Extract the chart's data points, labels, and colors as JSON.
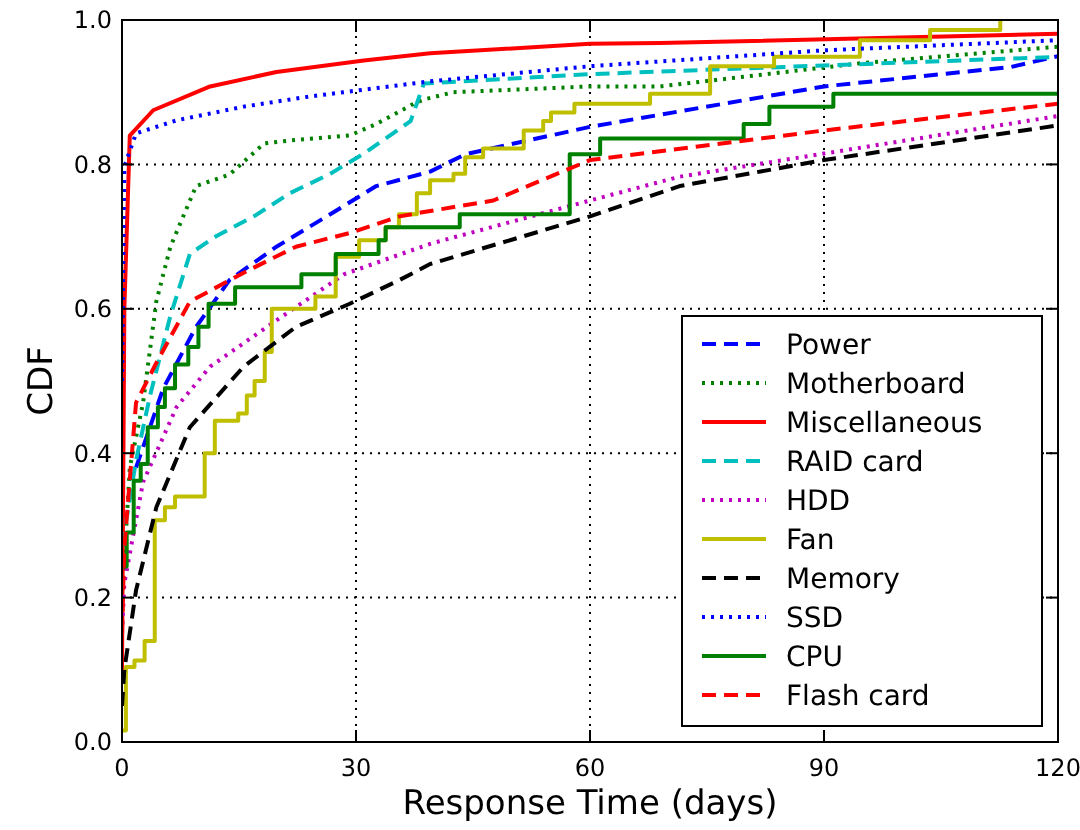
{
  "chart_data": {
    "type": "line",
    "xlabel": "Response Time (days)",
    "ylabel": "CDF",
    "xlim": [
      0,
      120
    ],
    "ylim": [
      0,
      1
    ],
    "xticks": [
      0,
      30,
      60,
      90,
      120
    ],
    "yticks": [
      {
        "value": 0,
        "label": "0.0"
      },
      {
        "value": 0.2,
        "label": "0.2"
      },
      {
        "value": 0.4,
        "label": "0.4"
      },
      {
        "value": 0.6,
        "label": "0.6"
      },
      {
        "value": 0.8,
        "label": "0.8"
      },
      {
        "value": 1,
        "label": "1.0"
      }
    ],
    "grid": true,
    "legend": "bottom right",
    "marker": "none",
    "series": [
      {
        "name": "Power",
        "color": "#0000ff",
        "line_style": "dashed",
        "x": [
          1.8,
          5.3,
          9.5,
          13.8,
          19.8,
          26.7,
          32.6,
          39.5,
          44,
          60,
          90,
          114,
          120
        ],
        "values": [
          0.38,
          0.49,
          0.575,
          0.64,
          0.686,
          0.731,
          0.77,
          0.79,
          0.814,
          0.852,
          0.908,
          0.935,
          0.95
        ]
      },
      {
        "name": "Motherboard",
        "color": "#008000",
        "line_style": "dotted",
        "x": [
          0,
          1,
          2.7,
          4.4,
          6.2,
          9.5,
          13.8,
          18.2,
          22.3,
          29.2,
          32.6,
          37.4,
          38.7,
          42.5,
          60,
          69,
          94.6,
          120
        ],
        "values": [
          0.2,
          0.38,
          0.47,
          0.61,
          0.686,
          0.77,
          0.786,
          0.829,
          0.834,
          0.84,
          0.856,
          0.884,
          0.89,
          0.9,
          0.908,
          0.908,
          0.94,
          0.963
        ]
      },
      {
        "name": "Miscellaneous",
        "color": "#ff0000",
        "line_style": "solid",
        "x": [
          0,
          0.3,
          1,
          4,
          11.3,
          19.8,
          31,
          39.5,
          60,
          69,
          120
        ],
        "values": [
          0.1,
          0.6,
          0.84,
          0.875,
          0.908,
          0.928,
          0.944,
          0.954,
          0.967,
          0.968,
          0.981
        ]
      },
      {
        "name": "RAID card",
        "color": "#00bfbf",
        "line_style": "dashed",
        "x": [
          0,
          0.3,
          1.8,
          3.6,
          6.2,
          8.7,
          12,
          17.2,
          21.5,
          26.7,
          31,
          37,
          38.7,
          60,
          90,
          120
        ],
        "values": [
          0.18,
          0.29,
          0.39,
          0.48,
          0.59,
          0.676,
          0.7,
          0.73,
          0.76,
          0.787,
          0.815,
          0.86,
          0.912,
          0.925,
          0.937,
          0.949
        ]
      },
      {
        "name": "HDD",
        "color": "#bf00bf",
        "line_style": "dotted",
        "x": [
          0,
          0.3,
          2.7,
          7,
          11.3,
          19.8,
          28.5,
          39.5,
          60,
          71.5,
          90,
          120
        ],
        "values": [
          0.15,
          0.22,
          0.36,
          0.464,
          0.52,
          0.584,
          0.648,
          0.69,
          0.75,
          0.783,
          0.815,
          0.867
        ]
      },
      {
        "name": "Fan",
        "color": "#bfbf00",
        "line_style": "solid",
        "type": "step",
        "x": [
          0,
          0.5,
          1.6,
          2.9,
          4.2,
          5.5,
          6.8,
          10.6,
          11.9,
          14.9,
          16,
          17,
          18.3,
          19.2,
          24.8,
          27.4,
          30.4,
          33.8,
          35.5,
          37.8,
          39.5,
          42.5,
          44,
          46.3,
          51.5,
          54,
          55,
          58,
          67.7,
          75.4,
          83.6,
          94.6,
          103.6,
          112.6
        ],
        "values": [
          0.016,
          0.104,
          0.113,
          0.14,
          0.307,
          0.325,
          0.34,
          0.4,
          0.445,
          0.455,
          0.48,
          0.5,
          0.54,
          0.6,
          0.617,
          0.672,
          0.695,
          0.713,
          0.731,
          0.76,
          0.778,
          0.787,
          0.81,
          0.822,
          0.847,
          0.86,
          0.872,
          0.884,
          0.898,
          0.936,
          0.949,
          0.972,
          0.986,
          1
        ]
      },
      {
        "name": "Memory",
        "color": "#000000",
        "line_style": "dashed",
        "x": [
          0,
          0.3,
          1.8,
          4.4,
          8.7,
          15.6,
          22.3,
          29.2,
          35.6,
          39.5,
          60,
          71.5,
          90,
          120
        ],
        "values": [
          0.05,
          0.1,
          0.21,
          0.325,
          0.436,
          0.52,
          0.575,
          0.607,
          0.64,
          0.662,
          0.728,
          0.77,
          0.806,
          0.854
        ]
      },
      {
        "name": "SSD",
        "color": "#0000ff",
        "line_style": "dotted",
        "x": [
          0,
          0.3,
          1.8,
          7,
          15.6,
          24,
          39.5,
          60,
          90,
          120
        ],
        "values": [
          0.5,
          0.797,
          0.843,
          0.861,
          0.88,
          0.894,
          0.915,
          0.936,
          0.958,
          0.972
        ]
      },
      {
        "name": "CPU",
        "color": "#008000",
        "line_style": "solid",
        "type": "step",
        "x": [
          0,
          0.6,
          1.5,
          2.4,
          3.3,
          4.6,
          5.5,
          6.8,
          8.5,
          9.8,
          11.1,
          14.5,
          23,
          27.4,
          32.9,
          33.8,
          43.3,
          57.4,
          61.3,
          79.7,
          83,
          91.2,
          120
        ],
        "values": [
          0.243,
          0.29,
          0.362,
          0.385,
          0.436,
          0.464,
          0.49,
          0.523,
          0.547,
          0.575,
          0.607,
          0.63,
          0.648,
          0.676,
          0.695,
          0.713,
          0.731,
          0.814,
          0.836,
          0.856,
          0.88,
          0.898,
          0.898
        ]
      },
      {
        "name": "Flash card",
        "color": "#ff0000",
        "line_style": "dashed",
        "x": [
          0,
          0.3,
          1.8,
          4.4,
          8.7,
          15.6,
          22.3,
          29.2,
          35.6,
          38.7,
          47.6,
          60,
          90,
          120
        ],
        "values": [
          0.15,
          0.27,
          0.47,
          0.525,
          0.61,
          0.65,
          0.686,
          0.705,
          0.728,
          0.734,
          0.75,
          0.806,
          0.847,
          0.884
        ]
      }
    ]
  }
}
